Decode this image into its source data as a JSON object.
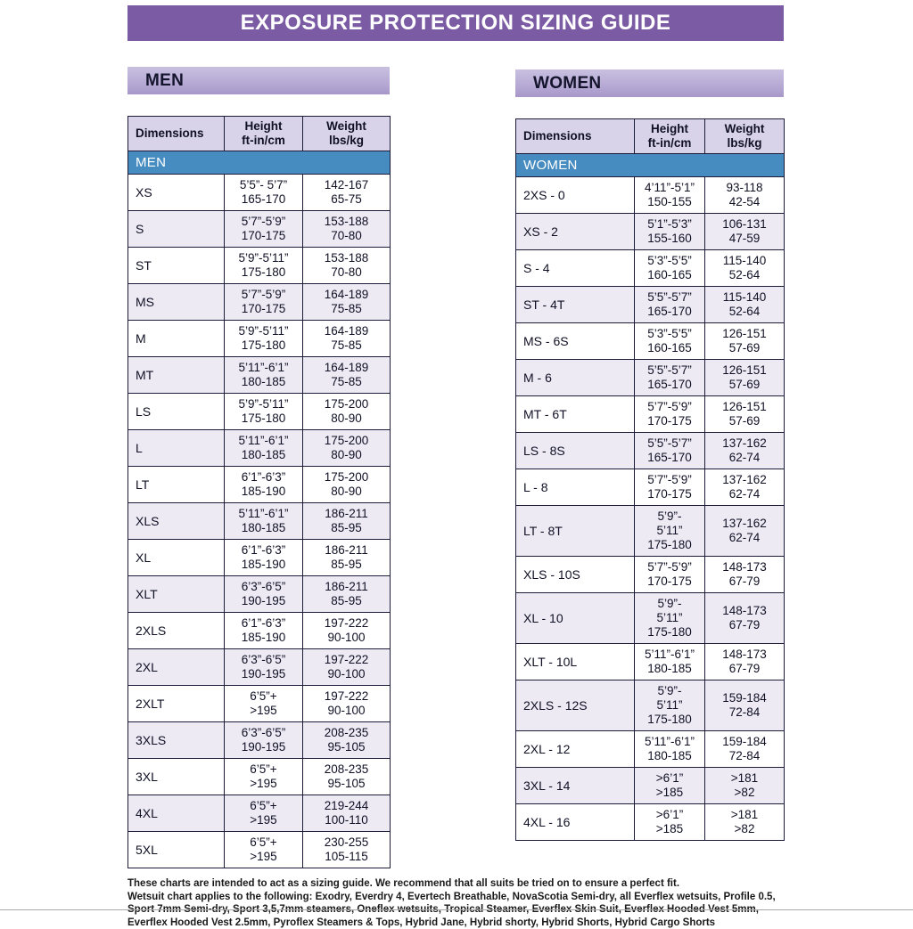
{
  "page": {
    "title": "EXPOSURE PROTECTION SIZING GUIDE"
  },
  "tables": {
    "men": {
      "banner": "MEN",
      "group_label": "MEN",
      "columns": [
        {
          "key": "dimensions",
          "lines": [
            "Dimensions"
          ]
        },
        {
          "key": "height",
          "lines": [
            "Height",
            "ft-in/cm"
          ]
        },
        {
          "key": "weight",
          "lines": [
            "Weight",
            "lbs/kg"
          ]
        }
      ],
      "rows": [
        {
          "size": "XS",
          "height": [
            "5’5”- 5’7”",
            "165-170"
          ],
          "weight": [
            "142-167",
            "65-75"
          ]
        },
        {
          "size": "S",
          "height": [
            "5’7”-5’9”",
            "170-175"
          ],
          "weight": [
            "153-188",
            "70-80"
          ]
        },
        {
          "size": "ST",
          "height": [
            "5’9”-5’11”",
            "175-180"
          ],
          "weight": [
            "153-188",
            "70-80"
          ]
        },
        {
          "size": "MS",
          "height": [
            "5’7”-5’9”",
            "170-175"
          ],
          "weight": [
            "164-189",
            "75-85"
          ]
        },
        {
          "size": "M",
          "height": [
            "5’9”-5’11”",
            "175-180"
          ],
          "weight": [
            "164-189",
            "75-85"
          ]
        },
        {
          "size": "MT",
          "height": [
            "5’11”-6’1”",
            "180-185"
          ],
          "weight": [
            "164-189",
            "75-85"
          ]
        },
        {
          "size": "LS",
          "height": [
            "5’9”-5’11”",
            "175-180"
          ],
          "weight": [
            "175-200",
            "80-90"
          ]
        },
        {
          "size": "L",
          "height": [
            "5’11”-6’1”",
            "180-185"
          ],
          "weight": [
            "175-200",
            "80-90"
          ]
        },
        {
          "size": "LT",
          "height": [
            "6’1”-6’3”",
            "185-190"
          ],
          "weight": [
            "175-200",
            "80-90"
          ]
        },
        {
          "size": "XLS",
          "height": [
            "5’11”-6’1”",
            "180-185"
          ],
          "weight": [
            "186-211",
            "85-95"
          ]
        },
        {
          "size": "XL",
          "height": [
            "6’1”-6’3”",
            "185-190"
          ],
          "weight": [
            "186-211",
            "85-95"
          ]
        },
        {
          "size": "XLT",
          "height": [
            "6’3”-6’5”",
            "190-195"
          ],
          "weight": [
            "186-211",
            "85-95"
          ]
        },
        {
          "size": "2XLS",
          "height": [
            "6’1”-6’3”",
            "185-190"
          ],
          "weight": [
            "197-222",
            "90-100"
          ]
        },
        {
          "size": "2XL",
          "height": [
            "6’3”-6’5”",
            "190-195"
          ],
          "weight": [
            "197-222",
            "90-100"
          ]
        },
        {
          "size": "2XLT",
          "height": [
            "6’5”+",
            ">195"
          ],
          "weight": [
            "197-222",
            "90-100"
          ]
        },
        {
          "size": "3XLS",
          "height": [
            "6’3”-6’5”",
            "190-195"
          ],
          "weight": [
            "208-235",
            "95-105"
          ]
        },
        {
          "size": "3XL",
          "height": [
            "6’5”+",
            ">195"
          ],
          "weight": [
            "208-235",
            "95-105"
          ]
        },
        {
          "size": "4XL",
          "height": [
            "6’5”+",
            ">195"
          ],
          "weight": [
            "219-244",
            "100-110"
          ]
        },
        {
          "size": "5XL",
          "height": [
            "6’5”+",
            ">195"
          ],
          "weight": [
            "230-255",
            "105-115"
          ]
        }
      ]
    },
    "women": {
      "banner": "WOMEN",
      "group_label": "WOMEN",
      "columns": [
        {
          "key": "dimensions",
          "lines": [
            "Dimensions"
          ]
        },
        {
          "key": "height",
          "lines": [
            "Height",
            "ft-in/cm"
          ]
        },
        {
          "key": "weight",
          "lines": [
            "Weight",
            "lbs/kg"
          ]
        }
      ],
      "rows": [
        {
          "size": "2XS - 0",
          "height": [
            "4’11”-5’1”",
            "150-155"
          ],
          "weight": [
            "93-118",
            "42-54"
          ]
        },
        {
          "size": "XS - 2",
          "height": [
            "5’1”-5’3”",
            "155-160"
          ],
          "weight": [
            "106-131",
            "47-59"
          ]
        },
        {
          "size": "S - 4",
          "height": [
            "5’3”-5’5”",
            "160-165"
          ],
          "weight": [
            "115-140",
            "52-64"
          ]
        },
        {
          "size": "ST - 4T",
          "height": [
            "5’5”-5’7”",
            "165-170"
          ],
          "weight": [
            "115-140",
            "52-64"
          ]
        },
        {
          "size": "MS - 6S",
          "height": [
            "5’3”-5’5”",
            "160-165"
          ],
          "weight": [
            "126-151",
            "57-69"
          ]
        },
        {
          "size": "M - 6",
          "height": [
            "5’5”-5’7”",
            "165-170"
          ],
          "weight": [
            "126-151",
            "57-69"
          ]
        },
        {
          "size": "MT - 6T",
          "height": [
            "5’7”-5’9”",
            "170-175"
          ],
          "weight": [
            "126-151",
            "57-69"
          ]
        },
        {
          "size": "LS - 8S",
          "height": [
            "5’5”-5’7”",
            "165-170"
          ],
          "weight": [
            "137-162",
            "62-74"
          ]
        },
        {
          "size": "L - 8",
          "height": [
            "5’7”-5’9”",
            "170-175"
          ],
          "weight": [
            "137-162",
            "62-74"
          ]
        },
        {
          "size": "LT - 8T",
          "height": [
            "5’9”-",
            "5’11”",
            "175-180"
          ],
          "weight": [
            "137-162",
            "62-74"
          ]
        },
        {
          "size": "XLS - 10S",
          "height": [
            "5’7”-5’9”",
            "170-175"
          ],
          "weight": [
            "148-173",
            "67-79"
          ]
        },
        {
          "size": "XL - 10",
          "height": [
            "5’9”-",
            "5’11”",
            "175-180"
          ],
          "weight": [
            "148-173",
            "67-79"
          ]
        },
        {
          "size": "XLT - 10L",
          "height": [
            "5’11”-6’1”",
            "180-185"
          ],
          "weight": [
            "148-173",
            "67-79"
          ]
        },
        {
          "size": "2XLS - 12S",
          "height": [
            "5’9”-",
            "5’11”",
            "175-180"
          ],
          "weight": [
            "159-184",
            "72-84"
          ]
        },
        {
          "size": "2XL - 12",
          "height": [
            "5’11”-6’1”",
            "180-185"
          ],
          "weight": [
            "159-184",
            "72-84"
          ]
        },
        {
          "size": "3XL - 14",
          "height": [
            ">6’1”",
            ">185"
          ],
          "weight": [
            ">181",
            ">82"
          ]
        },
        {
          "size": "4XL - 16",
          "height": [
            ">6’1”",
            ">185"
          ],
          "weight": [
            ">181",
            ">82"
          ]
        }
      ]
    }
  },
  "footer": {
    "disclaimer": "These charts are intended to act as a sizing guide. We recommend that all suits be tried on to ensure a perfect fit.",
    "applies": "Wetsuit chart applies to the following: Exodry, Everdry 4, Evertech Breathable, NovaScotia Semi-dry, all Everflex wetsuits, Profile 0.5, Sport 7mm Semi-dry, Sport 3,5,7mm steamers, Oneflex wetsuits, Tropical Steamer, Everflex Skin Suit, Everflex Hooded Vest 5mm, Everflex Hooded Vest  2.5mm, Pyroflex Steamers & Tops, Hybrid Jane, Hybrid shorty, Hybrid Shorts, Hybrid Cargo Shorts"
  },
  "colors": {
    "title_bar": "#7c5ba5",
    "section_banner": "#b3a5d2",
    "table_header": "#d9d3e9",
    "group_row": "#478cc1",
    "alt_row": "#edeaf4",
    "border": "#1c1c38"
  }
}
